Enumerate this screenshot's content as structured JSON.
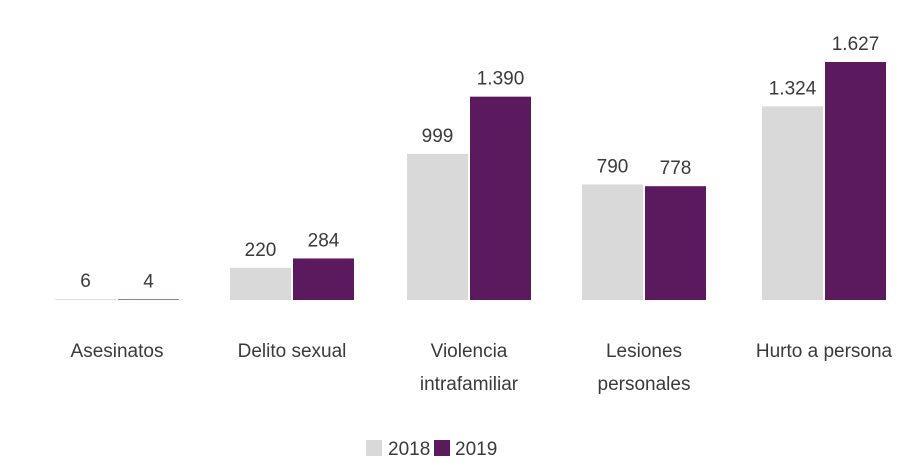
{
  "chart_data": {
    "type": "bar",
    "categories": [
      [
        "Asesinatos"
      ],
      [
        "Delito sexual"
      ],
      [
        "Violencia",
        "intrafamiliar"
      ],
      [
        "Lesiones",
        "personales"
      ],
      [
        "Hurto a persona"
      ]
    ],
    "series": [
      {
        "name": "2018",
        "color": "#d9d9d9",
        "values": [
          6,
          220,
          999,
          790,
          1324
        ],
        "labels": [
          "6",
          "220",
          "999",
          "790",
          "1.324"
        ]
      },
      {
        "name": "2019",
        "color": "#5b1a5e",
        "values": [
          4,
          284,
          1390,
          778,
          1627
        ],
        "labels": [
          "4",
          "284",
          "1.390",
          "778",
          "1.627"
        ]
      }
    ],
    "ylim": [
      0,
      1627
    ],
    "grid": false,
    "legend_position": "bottom-center"
  }
}
